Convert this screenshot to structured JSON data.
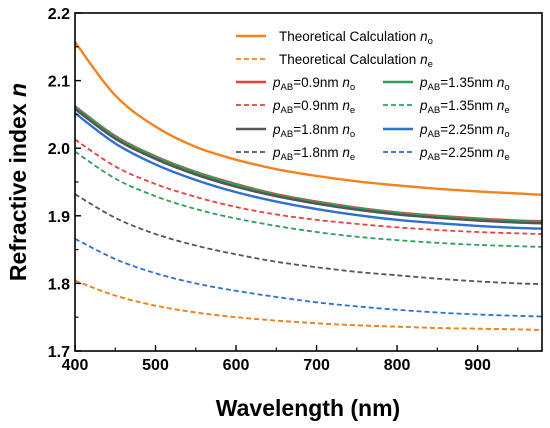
{
  "chart_data": {
    "type": "line",
    "title": "",
    "xlabel": "Wavelength (nm)",
    "ylabel_main": "Refractive index ",
    "ylabel_var": "n",
    "xlim": [
      400,
      980
    ],
    "ylim": [
      1.7,
      2.2
    ],
    "xticks": [
      400,
      500,
      600,
      700,
      800,
      900
    ],
    "yticks": [
      1.7,
      1.8,
      1.9,
      2.0,
      2.1,
      2.2
    ],
    "xtick_labels": [
      "400",
      "500",
      "600",
      "700",
      "800",
      "900"
    ],
    "ytick_labels": [
      "1.7",
      "1.8",
      "1.9",
      "2.0",
      "2.1",
      "2.2"
    ],
    "grid": false,
    "legend_position": "top-right",
    "series": [
      {
        "label_main": "Theoretical Calculation ",
        "label_sub": "o",
        "p": "",
        "p_sub": "",
        "p_val": "",
        "var": "n",
        "color": "#f4821f",
        "style": "solid",
        "x": [
          400,
          450,
          500,
          550,
          600,
          650,
          700,
          750,
          800,
          850,
          900,
          950,
          980
        ],
        "y": [
          2.157,
          2.078,
          2.032,
          2.002,
          1.983,
          1.969,
          1.959,
          1.951,
          1.945,
          1.94,
          1.936,
          1.933,
          1.931
        ]
      },
      {
        "label_main": "Theoretical Calculation ",
        "label_sub": "e",
        "p": "",
        "p_sub": "",
        "p_val": "",
        "var": "n",
        "color": "#f4821f",
        "style": "dashed",
        "x": [
          400,
          450,
          500,
          550,
          600,
          650,
          700,
          750,
          800,
          850,
          900,
          950,
          980
        ],
        "y": [
          1.804,
          1.782,
          1.767,
          1.757,
          1.75,
          1.745,
          1.741,
          1.738,
          1.736,
          1.734,
          1.733,
          1.732,
          1.731
        ]
      },
      {
        "label_main": "",
        "label_sub": "o",
        "p": "p",
        "p_sub": "AB",
        "p_val": "=0.9nm ",
        "var": "n",
        "color": "#e8413c",
        "style": "solid",
        "x": [
          400,
          450,
          500,
          550,
          600,
          650,
          700,
          750,
          800,
          850,
          900,
          950,
          980
        ],
        "y": [
          2.062,
          2.018,
          1.988,
          1.965,
          1.947,
          1.932,
          1.921,
          1.912,
          1.905,
          1.9,
          1.896,
          1.893,
          1.892
        ]
      },
      {
        "label_main": "",
        "label_sub": "o",
        "p": "p",
        "p_sub": "AB",
        "p_val": "=1.35nm ",
        "var": "n",
        "color": "#2ea05a",
        "style": "solid",
        "x": [
          400,
          450,
          500,
          550,
          600,
          650,
          700,
          750,
          800,
          850,
          900,
          950,
          980
        ],
        "y": [
          2.061,
          2.017,
          1.987,
          1.964,
          1.946,
          1.931,
          1.92,
          1.911,
          1.904,
          1.899,
          1.895,
          1.892,
          1.891
        ]
      },
      {
        "label_main": "",
        "label_sub": "e",
        "p": "p",
        "p_sub": "AB",
        "p_val": "=0.9nm ",
        "var": "n",
        "color": "#e8413c",
        "style": "dashed",
        "x": [
          400,
          450,
          500,
          550,
          600,
          650,
          700,
          750,
          800,
          850,
          900,
          950,
          980
        ],
        "y": [
          2.013,
          1.973,
          1.947,
          1.928,
          1.913,
          1.902,
          1.894,
          1.888,
          1.883,
          1.879,
          1.876,
          1.874,
          1.873
        ]
      },
      {
        "label_main": "",
        "label_sub": "e",
        "p": "p",
        "p_sub": "AB",
        "p_val": "=1.35nm ",
        "var": "n",
        "color": "#2ea05a",
        "style": "dashed",
        "x": [
          400,
          450,
          500,
          550,
          600,
          650,
          700,
          750,
          800,
          850,
          900,
          950,
          980
        ],
        "y": [
          1.995,
          1.955,
          1.929,
          1.91,
          1.896,
          1.885,
          1.876,
          1.869,
          1.864,
          1.86,
          1.857,
          1.855,
          1.854
        ]
      },
      {
        "label_main": "",
        "label_sub": "o",
        "p": "p",
        "p_sub": "AB",
        "p_val": "=1.8nm ",
        "var": "n",
        "color": "#555555",
        "style": "solid",
        "x": [
          400,
          450,
          500,
          550,
          600,
          650,
          700,
          750,
          800,
          850,
          900,
          950,
          980
        ],
        "y": [
          2.058,
          2.014,
          1.984,
          1.961,
          1.943,
          1.929,
          1.918,
          1.909,
          1.902,
          1.897,
          1.893,
          1.89,
          1.889
        ]
      },
      {
        "label_main": "",
        "label_sub": "o",
        "p": "p",
        "p_sub": "AB",
        "p_val": "=2.25nm ",
        "var": "n",
        "color": "#2f6fd0",
        "style": "solid",
        "x": [
          400,
          450,
          500,
          550,
          600,
          650,
          700,
          750,
          800,
          850,
          900,
          950,
          980
        ],
        "y": [
          2.052,
          2.007,
          1.976,
          1.953,
          1.935,
          1.921,
          1.91,
          1.901,
          1.894,
          1.889,
          1.885,
          1.882,
          1.881
        ]
      },
      {
        "label_main": "",
        "label_sub": "e",
        "p": "p",
        "p_sub": "AB",
        "p_val": "=1.8nm ",
        "var": "n",
        "color": "#555555",
        "style": "dashed",
        "x": [
          400,
          450,
          500,
          550,
          600,
          650,
          700,
          750,
          800,
          850,
          900,
          950,
          980
        ],
        "y": [
          1.932,
          1.897,
          1.873,
          1.856,
          1.843,
          1.832,
          1.824,
          1.817,
          1.812,
          1.807,
          1.803,
          1.8,
          1.799
        ]
      },
      {
        "label_main": "",
        "label_sub": "e",
        "p": "p",
        "p_sub": "AB",
        "p_val": "=2.25nm ",
        "var": "n",
        "color": "#2f6fd0",
        "style": "dashed",
        "x": [
          400,
          450,
          500,
          550,
          600,
          650,
          700,
          750,
          800,
          850,
          900,
          950,
          980
        ],
        "y": [
          1.866,
          1.836,
          1.815,
          1.8,
          1.789,
          1.78,
          1.772,
          1.766,
          1.761,
          1.757,
          1.754,
          1.752,
          1.751
        ]
      }
    ],
    "extra_lines": [
      {
        "color": "#c9a227",
        "style": "dashed",
        "x": [
          400,
          450,
          500,
          550,
          600,
          650,
          700,
          750,
          800,
          850,
          900,
          950,
          980
        ],
        "y": [
          1.804,
          1.782,
          1.767,
          1.757,
          1.75,
          1.745,
          1.741,
          1.738,
          1.736,
          1.734,
          1.733,
          1.732,
          1.731
        ]
      }
    ]
  }
}
